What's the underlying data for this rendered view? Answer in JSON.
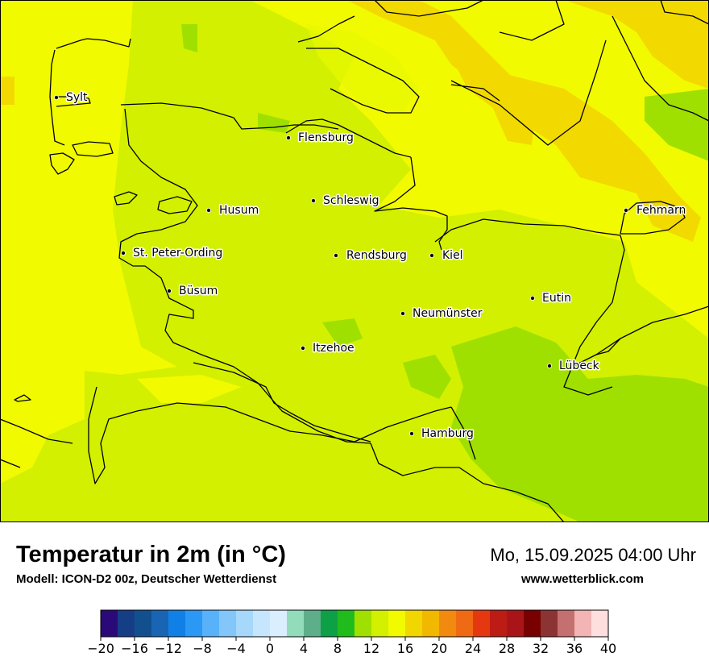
{
  "title": "Temperatur in 2m (in °C)",
  "model": "Modell: ICON-D2 00z, Deutscher Wetterdienst",
  "datetime": "Mo, 15.09.2025 04:00 Uhr",
  "website": "www.wetterblick.com",
  "cities": [
    {
      "name": "Sylt"
    },
    {
      "name": "Flensburg"
    },
    {
      "name": "Schleswig"
    },
    {
      "name": "Husum"
    },
    {
      "name": "Fehmarn"
    },
    {
      "name": "St. Peter-Ording"
    },
    {
      "name": "Rendsburg"
    },
    {
      "name": "Kiel"
    },
    {
      "name": "Büsum"
    },
    {
      "name": "Eutin"
    },
    {
      "name": "Neumünster"
    },
    {
      "name": "Itzehoe"
    },
    {
      "name": "Lübeck"
    },
    {
      "name": "Hamburg"
    }
  ],
  "legend": {
    "min": -20,
    "max": 40,
    "tick_labels": [
      "−20",
      "−16",
      "−12",
      "−8",
      "−4",
      "0",
      "4",
      "8",
      "12",
      "16",
      "20",
      "24",
      "28",
      "32",
      "36",
      "40"
    ],
    "colors": [
      "#2a0a78",
      "#163e86",
      "#124f8e",
      "#1a64b4",
      "#1080e6",
      "#2c98f6",
      "#58b2fa",
      "#82c6fa",
      "#a6d8fc",
      "#c6e6fe",
      "#daeefe",
      "#92dcbc",
      "#5eae8a",
      "#0ea046",
      "#20bc1c",
      "#a0e000",
      "#d2f000",
      "#f2fa00",
      "#f2d600",
      "#f2b800",
      "#f28a10",
      "#f06a14",
      "#e63810",
      "#bc1c14",
      "#a81418",
      "#780000",
      "#8c3434",
      "#c47070",
      "#f2b4b4",
      "#ffdede"
    ]
  }
}
